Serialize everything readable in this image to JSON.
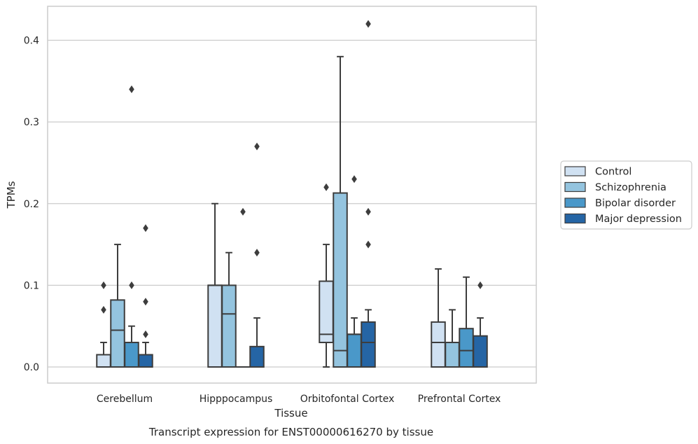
{
  "chart_data": {
    "type": "box",
    "title": "",
    "caption": "Transcript expression for ENST00000616270 by tissue",
    "xlabel": "Tissue",
    "ylabel": "TPMs",
    "ylim": [
      -0.02,
      0.44
    ],
    "yticks": [
      0.0,
      0.1,
      0.2,
      0.3,
      0.4
    ],
    "ytick_labels": [
      "0.0",
      "0.1",
      "0.2",
      "0.3",
      "0.4"
    ],
    "grid": "horizontal",
    "legend_position": "right",
    "categories": [
      "Cerebellum",
      "Hipppocampus",
      "Orbitofontal Cortex",
      "Prefrontal Cortex"
    ],
    "series": [
      {
        "name": "Control",
        "color": "#d0e1f2",
        "boxes": [
          {
            "whisker_low": 0.0,
            "q1": 0.0,
            "median": 0.0,
            "q3": 0.015,
            "whisker_high": 0.03,
            "outliers": [
              0.07,
              0.1
            ]
          },
          {
            "whisker_low": 0.0,
            "q1": 0.0,
            "median": 0.1,
            "q3": 0.1,
            "whisker_high": 0.2,
            "outliers": []
          },
          {
            "whisker_low": 0.0,
            "q1": 0.03,
            "median": 0.04,
            "q3": 0.105,
            "whisker_high": 0.15,
            "outliers": [
              0.22
            ]
          },
          {
            "whisker_low": 0.0,
            "q1": 0.0,
            "median": 0.03,
            "q3": 0.055,
            "whisker_high": 0.12,
            "outliers": []
          }
        ]
      },
      {
        "name": "Schizophrenia",
        "color": "#94c4df",
        "boxes": [
          {
            "whisker_low": 0.0,
            "q1": 0.0,
            "median": 0.045,
            "q3": 0.082,
            "whisker_high": 0.15,
            "outliers": []
          },
          {
            "whisker_low": 0.0,
            "q1": 0.0,
            "median": 0.065,
            "q3": 0.1,
            "whisker_high": 0.14,
            "outliers": []
          },
          {
            "whisker_low": 0.0,
            "q1": 0.0,
            "median": 0.02,
            "q3": 0.213,
            "whisker_high": 0.38,
            "outliers": []
          },
          {
            "whisker_low": 0.0,
            "q1": 0.0,
            "median": 0.03,
            "q3": 0.03,
            "whisker_high": 0.07,
            "outliers": []
          }
        ]
      },
      {
        "name": "Bipolar disorder",
        "color": "#4a98c9",
        "boxes": [
          {
            "whisker_low": 0.0,
            "q1": 0.0,
            "median": 0.03,
            "q3": 0.03,
            "whisker_high": 0.05,
            "outliers": [
              0.1,
              0.34
            ]
          },
          {
            "whisker_low": 0.0,
            "q1": 0.0,
            "median": 0.0,
            "q3": 0.0,
            "whisker_high": 0.0,
            "outliers": [
              0.19
            ]
          },
          {
            "whisker_low": 0.0,
            "q1": 0.0,
            "median": 0.04,
            "q3": 0.04,
            "whisker_high": 0.06,
            "outliers": [
              0.23
            ]
          },
          {
            "whisker_low": 0.0,
            "q1": 0.0,
            "median": 0.02,
            "q3": 0.047,
            "whisker_high": 0.11,
            "outliers": []
          }
        ]
      },
      {
        "name": "Major depression",
        "color": "#2565a5",
        "boxes": [
          {
            "whisker_low": 0.0,
            "q1": 0.0,
            "median": 0.0,
            "q3": 0.015,
            "whisker_high": 0.03,
            "outliers": [
              0.04,
              0.08,
              0.17
            ]
          },
          {
            "whisker_low": 0.0,
            "q1": 0.0,
            "median": 0.0,
            "q3": 0.025,
            "whisker_high": 0.06,
            "outliers": [
              0.14,
              0.27
            ]
          },
          {
            "whisker_low": 0.0,
            "q1": 0.0,
            "median": 0.03,
            "q3": 0.055,
            "whisker_high": 0.07,
            "outliers": [
              0.15,
              0.19,
              0.42
            ]
          },
          {
            "whisker_low": 0.0,
            "q1": 0.0,
            "median": 0.0,
            "q3": 0.038,
            "whisker_high": 0.06,
            "outliers": [
              0.1
            ]
          }
        ]
      }
    ]
  }
}
